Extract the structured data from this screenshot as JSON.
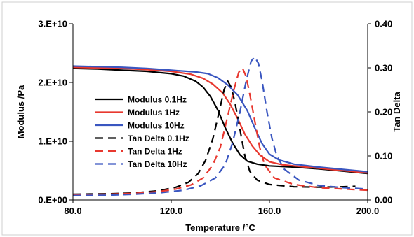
{
  "chart_data": {
    "type": "line",
    "title": "",
    "xlabel": "Temperature /°C",
    "ylabel": "Modulus /Pa",
    "y2label": "Tan Delta",
    "xlim": [
      80,
      200
    ],
    "ylim": [
      0,
      30000000000
    ],
    "y2lim": [
      0,
      0.4
    ],
    "x_ticks": [
      80,
      120,
      160,
      200
    ],
    "x_tick_labels": [
      "80.0",
      "120.0",
      "160.0",
      "200.0"
    ],
    "y_ticks": [
      0,
      10000000000,
      20000000000,
      30000000000
    ],
    "y_tick_labels": [
      "0.E+00",
      "1.E+10",
      "2.E+10",
      "3.E+10"
    ],
    "y2_ticks": [
      0,
      0.1,
      0.2,
      0.3,
      0.4
    ],
    "y2_tick_labels": [
      "0.00",
      "0.10",
      "0.20",
      "0.30",
      "0.40"
    ],
    "grid": false,
    "legend_position": "center-left",
    "series": [
      {
        "name": "Modulus 0.1Hz",
        "axis": "left",
        "color": "#000000",
        "dash": "solid",
        "points": [
          [
            80,
            22400000000
          ],
          [
            90,
            22300000000
          ],
          [
            100,
            22100000000
          ],
          [
            110,
            21900000000
          ],
          [
            120,
            21500000000
          ],
          [
            125,
            21100000000
          ],
          [
            130,
            20200000000
          ],
          [
            133,
            19200000000
          ],
          [
            136,
            17600000000
          ],
          [
            139,
            15300000000
          ],
          [
            142,
            12300000000
          ],
          [
            145,
            9700000000
          ],
          [
            148,
            7700000000
          ],
          [
            151,
            6600000000
          ],
          [
            155,
            6100000000
          ],
          [
            160,
            5800000000
          ],
          [
            170,
            5600000000
          ],
          [
            180,
            5300000000
          ],
          [
            190,
            4900000000
          ],
          [
            200,
            4500000000
          ]
        ]
      },
      {
        "name": "Modulus 1Hz",
        "axis": "left",
        "color": "#e8382f",
        "dash": "solid",
        "points": [
          [
            80,
            22600000000
          ],
          [
            90,
            22500000000
          ],
          [
            100,
            22400000000
          ],
          [
            110,
            22200000000
          ],
          [
            120,
            21900000000
          ],
          [
            128,
            21400000000
          ],
          [
            133,
            20700000000
          ],
          [
            137,
            19700000000
          ],
          [
            141,
            18200000000
          ],
          [
            144,
            16300000000
          ],
          [
            147,
            13900000000
          ],
          [
            150,
            11200000000
          ],
          [
            153,
            9200000000
          ],
          [
            156,
            7700000000
          ],
          [
            160,
            6500000000
          ],
          [
            165,
            6000000000
          ],
          [
            170,
            5800000000
          ],
          [
            180,
            5400000000
          ],
          [
            190,
            5000000000
          ],
          [
            200,
            4600000000
          ]
        ]
      },
      {
        "name": "Modulus 10Hz",
        "axis": "left",
        "color": "#3a56c0",
        "dash": "solid",
        "points": [
          [
            80,
            22800000000
          ],
          [
            90,
            22700000000
          ],
          [
            100,
            22600000000
          ],
          [
            110,
            22400000000
          ],
          [
            120,
            22100000000
          ],
          [
            130,
            21800000000
          ],
          [
            135,
            21500000000
          ],
          [
            139,
            20800000000
          ],
          [
            143,
            19600000000
          ],
          [
            147,
            17900000000
          ],
          [
            151,
            15200000000
          ],
          [
            154,
            12300000000
          ],
          [
            157,
            9600000000
          ],
          [
            160,
            7800000000
          ],
          [
            164,
            6800000000
          ],
          [
            170,
            6100000000
          ],
          [
            180,
            5600000000
          ],
          [
            190,
            5200000000
          ],
          [
            200,
            4800000000
          ]
        ]
      },
      {
        "name": "Tan Delta 0.1Hz",
        "axis": "right",
        "color": "#000000",
        "dash": "dashed",
        "points": [
          [
            80,
            0.013
          ],
          [
            95,
            0.014
          ],
          [
            105,
            0.016
          ],
          [
            115,
            0.021
          ],
          [
            122,
            0.029
          ],
          [
            127,
            0.04
          ],
          [
            131,
            0.06
          ],
          [
            134,
            0.09
          ],
          [
            137,
            0.14
          ],
          [
            139.5,
            0.2
          ],
          [
            141.5,
            0.25
          ],
          [
            143,
            0.27
          ],
          [
            144.5,
            0.255
          ],
          [
            146,
            0.22
          ],
          [
            148,
            0.16
          ],
          [
            150,
            0.1
          ],
          [
            152,
            0.065
          ],
          [
            155,
            0.045
          ],
          [
            160,
            0.035
          ],
          [
            170,
            0.03
          ],
          [
            180,
            0.029
          ],
          [
            190,
            0.03
          ],
          [
            195,
            0.031
          ]
        ]
      },
      {
        "name": "Tan Delta 1Hz",
        "axis": "right",
        "color": "#e8382f",
        "dash": "dashed",
        "points": [
          [
            80,
            0.012
          ],
          [
            95,
            0.013
          ],
          [
            105,
            0.015
          ],
          [
            115,
            0.019
          ],
          [
            122,
            0.025
          ],
          [
            128,
            0.034
          ],
          [
            133,
            0.05
          ],
          [
            137,
            0.08
          ],
          [
            140,
            0.12
          ],
          [
            143,
            0.19
          ],
          [
            145.5,
            0.25
          ],
          [
            147.5,
            0.29
          ],
          [
            149,
            0.3
          ],
          [
            150.5,
            0.28
          ],
          [
            152,
            0.24
          ],
          [
            154,
            0.18
          ],
          [
            156,
            0.12
          ],
          [
            158,
            0.08
          ],
          [
            162,
            0.05
          ],
          [
            170,
            0.035
          ],
          [
            180,
            0.028
          ],
          [
            190,
            0.025
          ],
          [
            200,
            0.022
          ]
        ]
      },
      {
        "name": "Tan Delta 10Hz",
        "axis": "right",
        "color": "#3a56c0",
        "dash": "dashed",
        "points": [
          [
            80,
            0.01
          ],
          [
            95,
            0.011
          ],
          [
            105,
            0.013
          ],
          [
            115,
            0.016
          ],
          [
            125,
            0.022
          ],
          [
            132,
            0.032
          ],
          [
            138,
            0.05
          ],
          [
            142,
            0.08
          ],
          [
            145,
            0.13
          ],
          [
            148,
            0.2
          ],
          [
            150.5,
            0.27
          ],
          [
            152.5,
            0.315
          ],
          [
            154,
            0.325
          ],
          [
            155.5,
            0.31
          ],
          [
            157,
            0.27
          ],
          [
            159,
            0.2
          ],
          [
            161,
            0.14
          ],
          [
            163,
            0.1
          ],
          [
            166,
            0.07
          ],
          [
            172,
            0.045
          ],
          [
            180,
            0.033
          ],
          [
            190,
            0.028
          ],
          [
            200,
            0.025
          ]
        ]
      }
    ]
  }
}
